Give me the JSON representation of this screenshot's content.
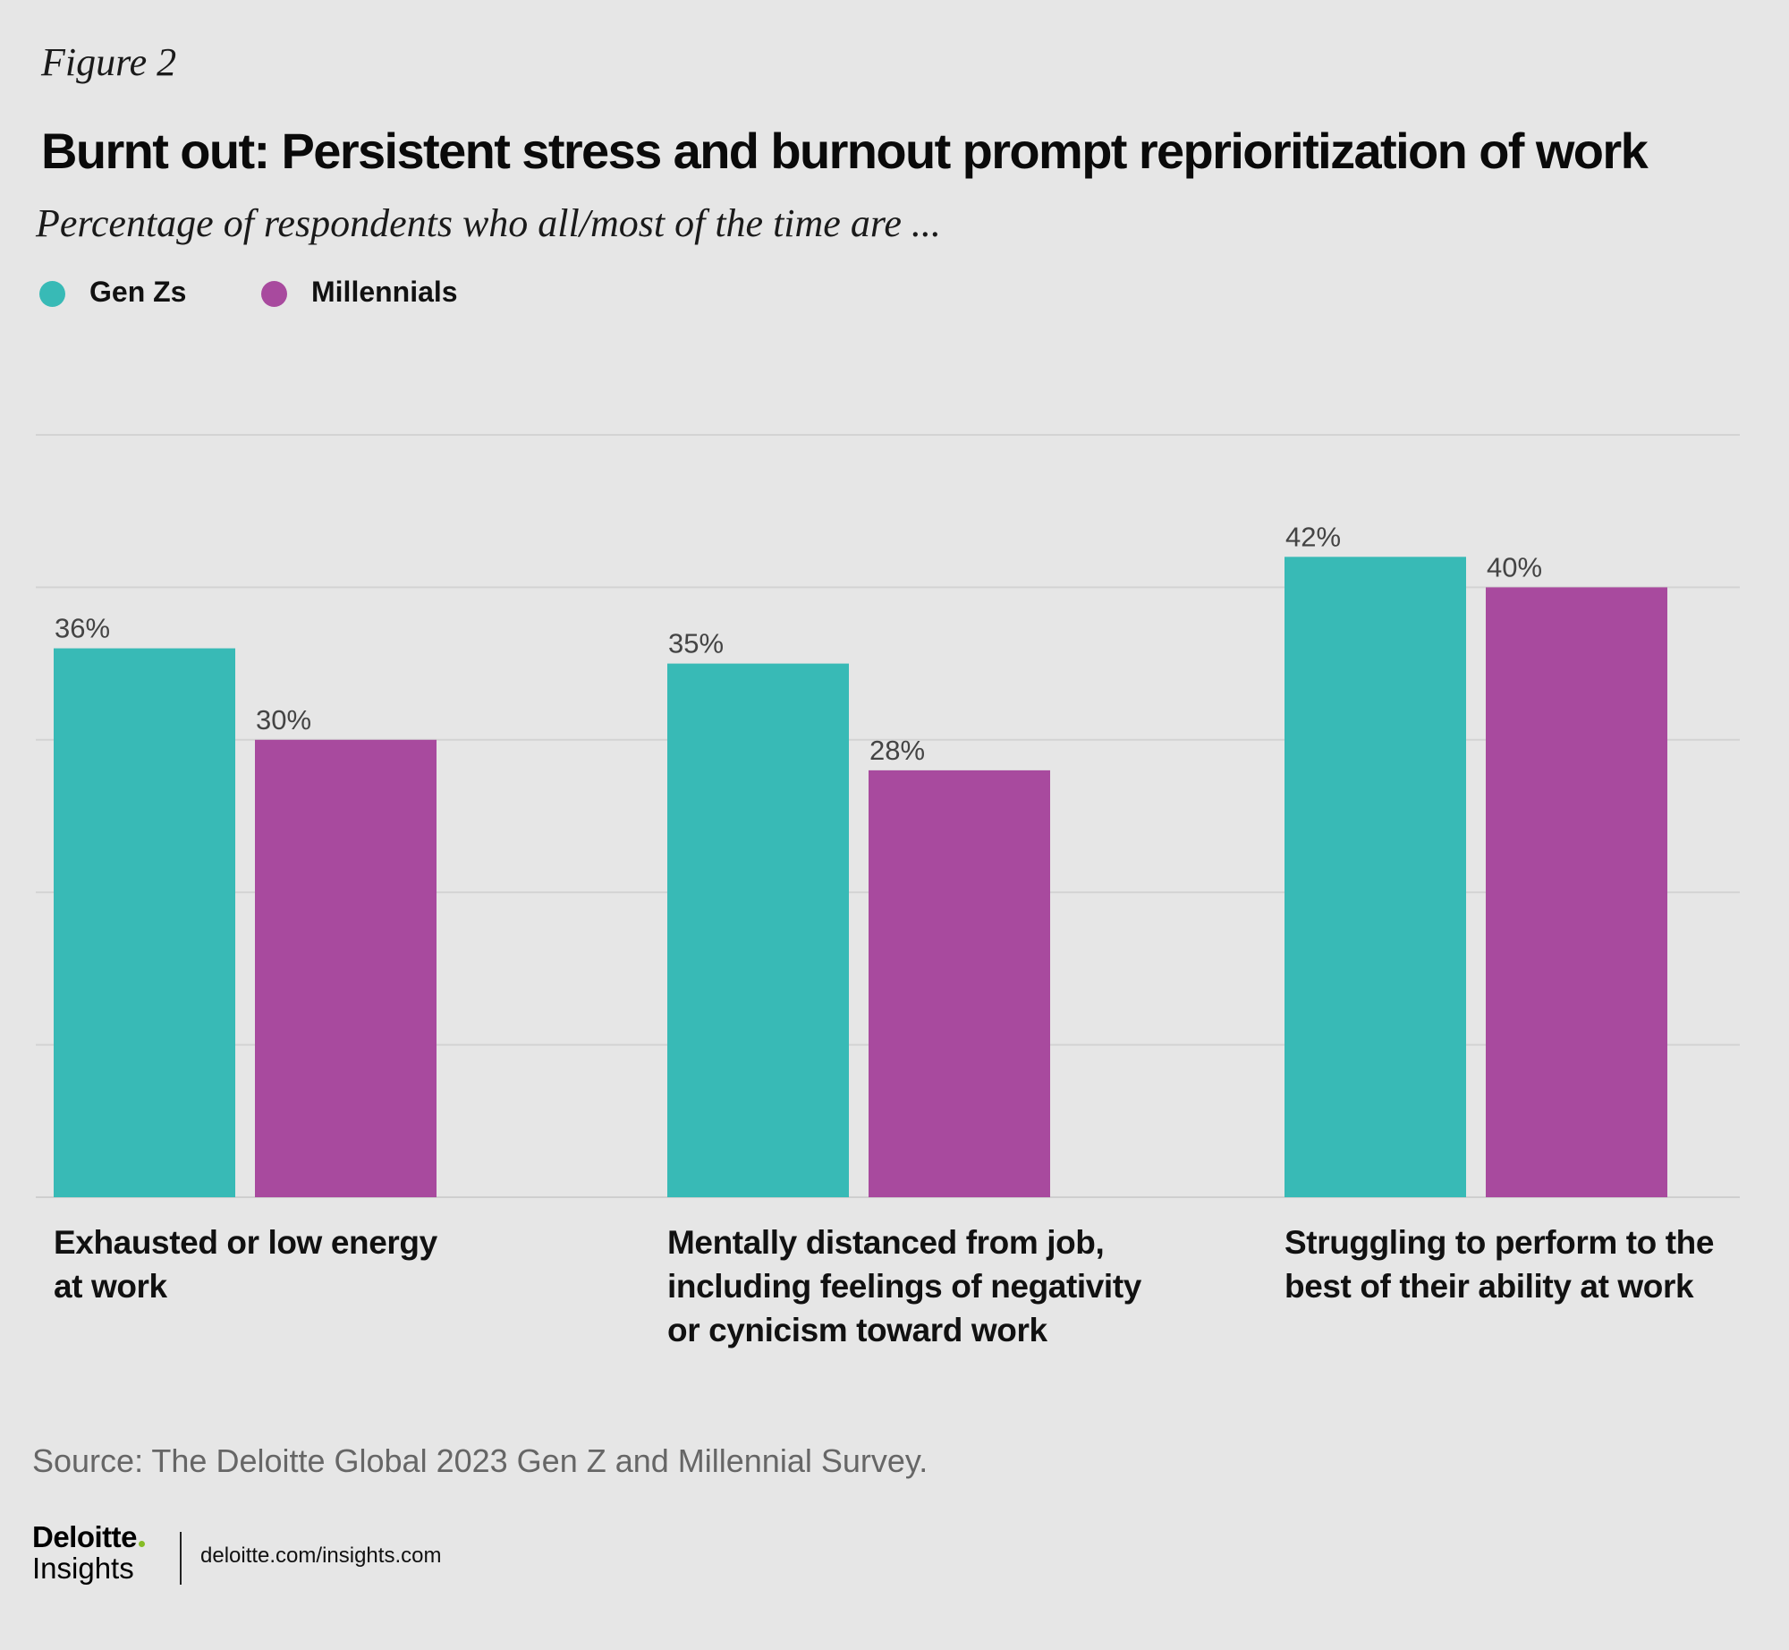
{
  "figure_label": "Figure 2",
  "colors": {
    "gen_z": "#38bab6",
    "millennials": "#a84a9e",
    "grid": "#d3d3d3",
    "background": "#e6e6e6"
  },
  "legend": [
    {
      "label": "Gen Zs",
      "color": "#38bab6"
    },
    {
      "label": "Millennials",
      "color": "#a84a9e"
    }
  ],
  "chart_data": {
    "type": "bar",
    "title": "Burnt out: Persistent stress and burnout prompt reprioritization of work",
    "subtitle": "Percentage of respondents who all/most of the time are ...",
    "categories": [
      "Exhausted or low energy at work",
      "Mentally distanced from job, including feelings of negativity or cynicism toward work",
      "Struggling to perform to the best of their ability at work"
    ],
    "category_lines": [
      [
        "Exhausted or low energy",
        "at work"
      ],
      [
        "Mentally distanced from job,",
        "including feelings of negativity",
        "or cynicism toward work"
      ],
      [
        "Struggling to perform to the",
        "best of their ability at work"
      ]
    ],
    "series": [
      {
        "name": "Gen Zs",
        "values": [
          36,
          35,
          42
        ],
        "labels": [
          "36%",
          "35%",
          "42%"
        ]
      },
      {
        "name": "Millennials",
        "values": [
          30,
          28,
          40
        ],
        "labels": [
          "30%",
          "28%",
          "40%"
        ]
      }
    ],
    "ylim": [
      0,
      50
    ],
    "gridlines": [
      10,
      20,
      30,
      40,
      50
    ],
    "xlabel": "",
    "ylabel": ""
  },
  "source": "Source: The Deloitte Global 2023 Gen Z and Millennial Survey.",
  "footer": {
    "logo_top": "Deloitte",
    "logo_bottom": "Insights",
    "url": "deloitte.com/insights.com"
  }
}
